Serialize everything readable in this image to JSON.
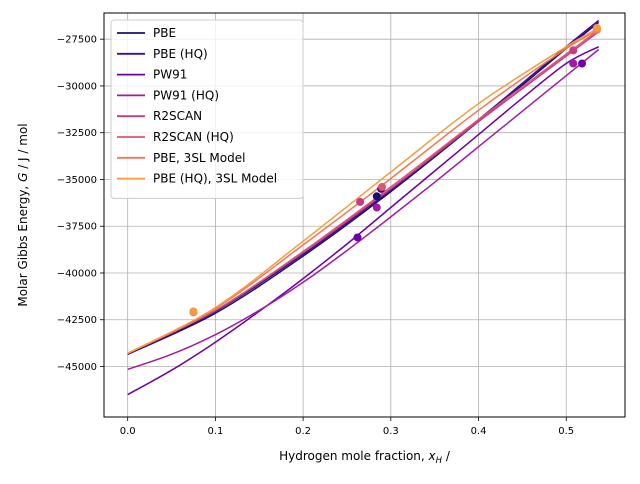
{
  "chart_data": {
    "type": "line",
    "title": "",
    "xlabel": "Hydrogen mole fraction, ",
    "xlabel_math": "x",
    "xlabel_sub": "H",
    "xlabel_suffix": " /",
    "ylabel": "Molar Gibbs Energy, ",
    "ylabel_math": "G",
    "ylabel_suffix": " / J / mol",
    "xlim": [
      -0.027,
      0.567
    ],
    "ylim": [
      -47700,
      -26100
    ],
    "xticks": [
      0.0,
      0.1,
      0.2,
      0.3,
      0.4,
      0.5
    ],
    "xtick_labels": [
      "0.0",
      "0.1",
      "0.2",
      "0.3",
      "0.4",
      "0.5"
    ],
    "yticks": [
      -45000,
      -42500,
      -40000,
      -37500,
      -35000,
      -32500,
      -30000,
      -27500
    ],
    "ytick_labels": [
      "−45000",
      "−42500",
      "−40000",
      "−37500",
      "−35000",
      "−32500",
      "−30000",
      "−27500"
    ],
    "grid": true,
    "legend_position": "upper-left",
    "series": [
      {
        "name": "PBE",
        "color": "#1a0f70",
        "x": [
          0,
          0.1,
          0.2,
          0.3,
          0.4,
          0.5,
          0.537
        ],
        "y": [
          -44350,
          -42150,
          -39100,
          -35650,
          -31900,
          -28000,
          -26600
        ],
        "markers": [
          {
            "x": 0.284,
            "y": -35900
          }
        ]
      },
      {
        "name": "PBE (HQ)",
        "color": "#3d0a9a",
        "x": [
          0,
          0.1,
          0.2,
          0.3,
          0.4,
          0.5,
          0.537
        ],
        "y": [
          -44350,
          -42050,
          -39000,
          -35550,
          -31800,
          -27900,
          -26500
        ],
        "markers": [
          {
            "x": 0.289,
            "y": -35500
          }
        ]
      },
      {
        "name": "PW91",
        "color": "#6c00a8",
        "x": [
          0,
          0.05,
          0.1,
          0.15,
          0.2,
          0.25,
          0.3,
          0.35,
          0.4,
          0.45,
          0.5,
          0.537
        ],
        "y": [
          -46500,
          -45200,
          -43700,
          -42050,
          -40300,
          -38450,
          -36500,
          -34550,
          -32600,
          -30650,
          -28800,
          -27900
        ],
        "markers": [
          {
            "x": 0.262,
            "y": -38100
          },
          {
            "x": 0.518,
            "y": -28800
          }
        ]
      },
      {
        "name": "PW91 (HQ)",
        "color": "#a01ba0",
        "x": [
          0,
          0.05,
          0.1,
          0.15,
          0.2,
          0.25,
          0.3,
          0.35,
          0.4,
          0.45,
          0.5,
          0.537
        ],
        "y": [
          -45150,
          -44350,
          -43300,
          -42000,
          -40500,
          -38800,
          -37000,
          -35150,
          -33250,
          -31350,
          -29450,
          -28050
        ],
        "markers": [
          {
            "x": 0.284,
            "y": -36500
          },
          {
            "x": 0.508,
            "y": -28800
          }
        ]
      },
      {
        "name": "R2SCAN",
        "color": "#c93a82",
        "x": [
          0,
          0.1,
          0.2,
          0.3,
          0.4,
          0.5,
          0.537
        ],
        "y": [
          -44300,
          -42000,
          -38900,
          -35500,
          -31900,
          -28400,
          -27100
        ],
        "markers": [
          {
            "x": 0.265,
            "y": -36200
          },
          {
            "x": 0.508,
            "y": -28100
          }
        ]
      },
      {
        "name": "R2SCAN (HQ)",
        "color": "#de5570",
        "x": [
          0,
          0.1,
          0.2,
          0.3,
          0.4,
          0.5,
          0.537
        ],
        "y": [
          -44300,
          -42000,
          -38850,
          -35400,
          -31800,
          -28300,
          -27000
        ],
        "markers": [
          {
            "x": 0.29,
            "y": -35400
          }
        ]
      },
      {
        "name": "PBE, 3SL Model",
        "color": "#f37651",
        "x": [
          0,
          0.1,
          0.2,
          0.3,
          0.4,
          0.5,
          0.537
        ],
        "y": [
          -44300,
          -41900,
          -38500,
          -34950,
          -31300,
          -28000,
          -27000
        ],
        "markers": [
          {
            "x": 0.075,
            "y": -42100
          },
          {
            "x": 0.535,
            "y": -27000
          }
        ]
      },
      {
        "name": "PBE (HQ), 3SL Model",
        "color": "#f99a3e",
        "x": [
          0,
          0.1,
          0.2,
          0.3,
          0.4,
          0.5,
          0.537
        ],
        "y": [
          -44300,
          -41850,
          -38300,
          -34600,
          -30950,
          -27900,
          -26900
        ],
        "markers": [
          {
            "x": 0.075,
            "y": -42050
          },
          {
            "x": 0.535,
            "y": -26900
          }
        ]
      }
    ]
  }
}
